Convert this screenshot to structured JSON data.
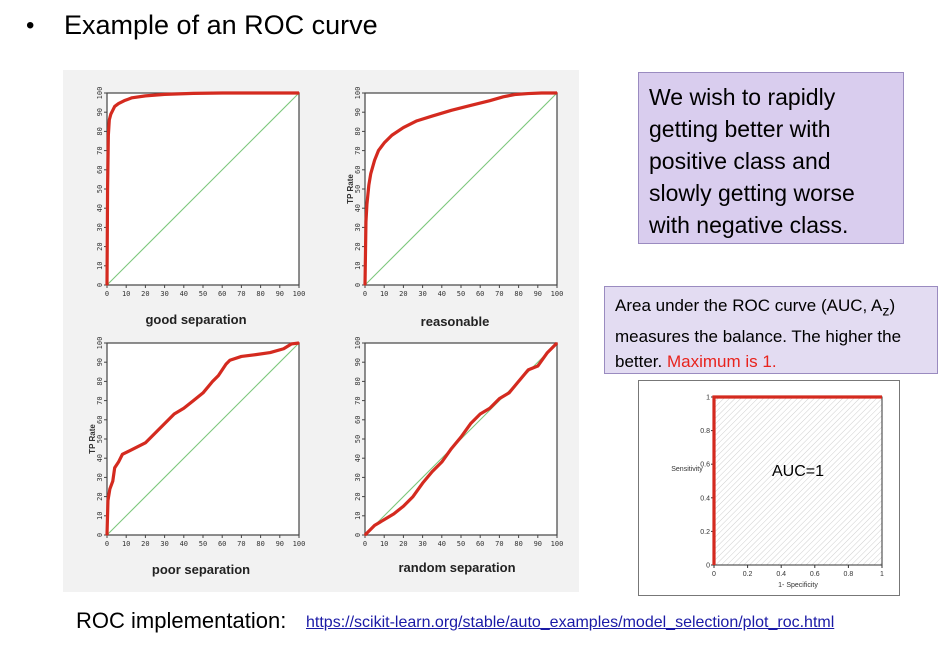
{
  "slide": {
    "bullet": "•",
    "heading": "Example of an ROC curve",
    "callout_main": "We wish to rapidly getting better with positive class and slowly getting worse with negative class.",
    "auc_note": {
      "part1": "Area under the ROC curve (AUC, A",
      "subscript": "z",
      "part2": ") measures the balance. The higher the better. ",
      "highlight": "Maximum is 1."
    },
    "implementation_label": "ROC implementation:",
    "implementation_url": "https://scikit-learn.org/stable/auto_examples/model_selection/plot_roc.html"
  },
  "colors": {
    "curve": "#d42a1f",
    "diagonal": "#7cc77c",
    "highlight": "#e8231d",
    "callout_bg": "#d9cdee"
  },
  "chart_data": [
    {
      "type": "line",
      "title": "good separation",
      "xlabel": "",
      "ylabel": "",
      "xlim": [
        0,
        100
      ],
      "ylim": [
        0,
        100
      ],
      "xticks": [
        0,
        10,
        20,
        30,
        40,
        50,
        60,
        70,
        80,
        90,
        100
      ],
      "yticks": [
        0,
        10,
        20,
        30,
        40,
        50,
        60,
        70,
        80,
        90,
        100
      ],
      "series": [
        {
          "x": [
            0,
            0.3,
            0.7,
            1.2,
            2,
            3,
            4,
            6,
            9,
            13,
            20,
            30,
            45,
            60,
            100
          ],
          "y": [
            0,
            50,
            78,
            86,
            89,
            91,
            93,
            94.5,
            96,
            97.5,
            98.5,
            99.3,
            99.8,
            100,
            100
          ]
        },
        {
          "x": [
            0,
            100
          ],
          "y": [
            0,
            100
          ]
        }
      ]
    },
    {
      "type": "line",
      "title": "reasonable",
      "xlabel": "",
      "ylabel": "TP Rate",
      "xlim": [
        0,
        100
      ],
      "ylim": [
        0,
        100
      ],
      "xticks": [
        0,
        10,
        20,
        30,
        40,
        50,
        60,
        70,
        80,
        90,
        100
      ],
      "yticks": [
        0,
        10,
        20,
        30,
        40,
        50,
        60,
        70,
        80,
        90,
        100
      ],
      "series": [
        {
          "x": [
            0,
            0.5,
            1,
            2,
            3,
            5,
            7,
            10,
            14,
            20,
            27,
            35,
            45,
            55,
            65,
            72,
            78,
            85,
            92,
            100
          ],
          "y": [
            0,
            33,
            42,
            52,
            58,
            65,
            70,
            74,
            78,
            82,
            85.5,
            88,
            91,
            93.5,
            96,
            98,
            99.2,
            99.7,
            100,
            100
          ]
        },
        {
          "x": [
            0,
            100
          ],
          "y": [
            0,
            100
          ]
        }
      ]
    },
    {
      "type": "line",
      "title": "poor separation",
      "xlabel": "",
      "ylabel": "TP Rate",
      "xlim": [
        0,
        100
      ],
      "ylim": [
        0,
        100
      ],
      "xticks": [
        0,
        10,
        20,
        30,
        40,
        50,
        60,
        70,
        80,
        90,
        100
      ],
      "yticks": [
        0,
        10,
        20,
        30,
        40,
        50,
        60,
        70,
        80,
        90,
        100
      ],
      "series": [
        {
          "x": [
            0,
            0.5,
            1.5,
            3,
            4,
            6,
            8,
            12,
            16,
            20,
            25,
            30,
            35,
            40,
            45,
            50,
            55,
            58,
            60,
            62,
            64,
            70,
            78,
            85,
            92,
            96,
            100
          ],
          "y": [
            0,
            18,
            24,
            28,
            35,
            38,
            42,
            44,
            46,
            48,
            53,
            58,
            63,
            66,
            70,
            74,
            80,
            83,
            86,
            89,
            91,
            93,
            94,
            95,
            97,
            99.5,
            100
          ]
        },
        {
          "x": [
            0,
            100
          ],
          "y": [
            0,
            100
          ]
        }
      ]
    },
    {
      "type": "line",
      "title": "random separation",
      "xlabel": "",
      "ylabel": "",
      "xlim": [
        0,
        100
      ],
      "ylim": [
        0,
        100
      ],
      "xticks": [
        0,
        10,
        20,
        30,
        40,
        50,
        60,
        70,
        80,
        90,
        100
      ],
      "yticks": [
        0,
        10,
        20,
        30,
        40,
        50,
        60,
        70,
        80,
        90,
        100
      ],
      "series": [
        {
          "x": [
            0,
            3,
            5,
            10,
            15,
            20,
            25,
            30,
            35,
            40,
            45,
            50,
            55,
            60,
            65,
            70,
            75,
            80,
            85,
            90,
            95,
            100
          ],
          "y": [
            0,
            3,
            5,
            8,
            11,
            15,
            20,
            27,
            33,
            38,
            45,
            51,
            58,
            63,
            66,
            71,
            74,
            80,
            86,
            88,
            95,
            100
          ]
        },
        {
          "x": [
            0,
            100
          ],
          "y": [
            0,
            100
          ]
        }
      ]
    },
    {
      "type": "line",
      "title": "",
      "annotation": "AUC=1",
      "xlabel": "1- Specificity",
      "ylabel": "Sensitivity",
      "xlim": [
        0,
        1
      ],
      "ylim": [
        0,
        1
      ],
      "xticks": [
        "0",
        "0.2",
        "0.4",
        "0.6",
        "0.8",
        "1"
      ],
      "yticks": [
        "0",
        "0.2",
        "0.4",
        "0.6",
        "0.8",
        "1"
      ],
      "series": [
        {
          "x": [
            0,
            0,
            1
          ],
          "y": [
            0,
            1,
            1
          ]
        }
      ]
    }
  ]
}
